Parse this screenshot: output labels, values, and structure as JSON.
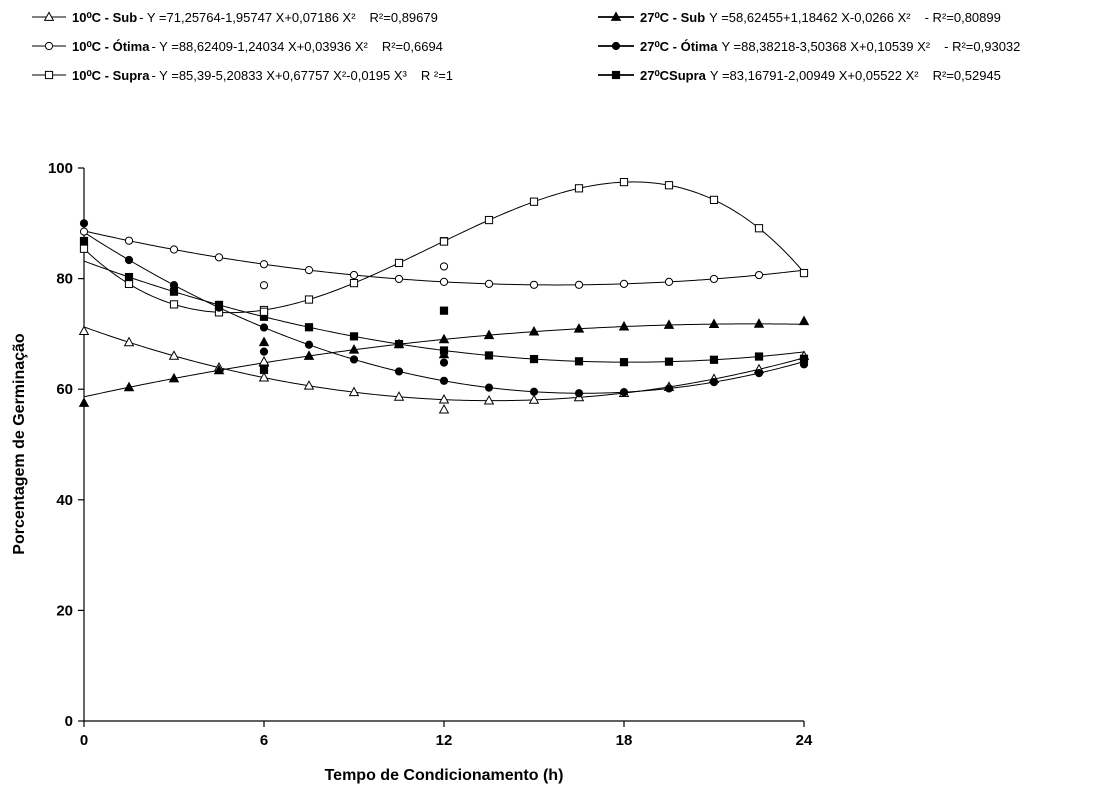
{
  "chart_data": {
    "type": "scatter",
    "xlabel": "Tempo de Condicionamento (h)",
    "ylabel": "Porcentagem de Germinação",
    "xlim": [
      0,
      24
    ],
    "ylim": [
      0,
      100
    ],
    "xticks": [
      0,
      6,
      12,
      18,
      24
    ],
    "yticks": [
      0,
      20,
      40,
      60,
      80,
      100
    ],
    "grid": false,
    "legend_position": "top",
    "series": [
      {
        "key": "s10sub",
        "name_bold": "10⁰C - Sub",
        "equation": "Y =71,25764-1,95747 X+0,07186 X²",
        "r2": "R²=0,89679",
        "marker": "triangle-open",
        "coef": [
          71.25764,
          -1.95747,
          0.07186,
          0
        ],
        "points": [
          [
            0,
            70.5
          ],
          [
            6,
            65
          ],
          [
            12,
            56.3
          ],
          [
            24,
            66
          ]
        ]
      },
      {
        "key": "s10otima",
        "name_bold": "10⁰C - Ótima",
        "equation": "Y =88,62409-1,24034 X+0,03936 X²",
        "r2": "R²=0,6694",
        "marker": "circle-open",
        "coef": [
          88.62409,
          -1.24034,
          0.03936,
          0
        ],
        "points": [
          [
            0,
            88.5
          ],
          [
            6,
            78.8
          ],
          [
            12,
            82.2
          ],
          [
            24,
            81
          ]
        ]
      },
      {
        "key": "s10supra",
        "name_bold": "10⁰C - Supra",
        "equation": "Y =85,39-5,20833 X+0,67757 X²-0,0195 X³",
        "r2": "R ²=1",
        "marker": "square-open",
        "coef": [
          85.39,
          -5.20833,
          0.67757,
          -0.0195
        ],
        "points": [
          [
            0,
            85.4
          ],
          [
            6,
            74
          ],
          [
            12,
            86.7
          ],
          [
            24,
            81
          ]
        ]
      },
      {
        "key": "s27sub",
        "name_bold": "27⁰C - Sub",
        "equation": "Y =58,62455+1,18462 X-0,0266 X²",
        "r2": "- R²=0,80899",
        "marker": "triangle-filled",
        "coef": [
          58.62455,
          1.18462,
          -0.0266,
          0
        ],
        "points": [
          [
            0,
            57.5
          ],
          [
            6,
            68.5
          ],
          [
            12,
            66.3
          ],
          [
            24,
            72.3
          ]
        ]
      },
      {
        "key": "s27otima",
        "name_bold": "27⁰C - Ótima",
        "equation": "Y =88,38218-3,50368 X+0,10539 X²",
        "r2": "- R²=0,93032",
        "marker": "circle-filled",
        "coef": [
          88.38218,
          -3.50368,
          0.10539,
          0
        ],
        "points": [
          [
            0,
            90
          ],
          [
            6,
            66.8
          ],
          [
            12,
            64.8
          ],
          [
            24,
            64.5
          ]
        ]
      },
      {
        "key": "s27supra",
        "name_bold": "27⁰CSupra",
        "equation": "Y =83,16791-2,00949 X+0,05522 X²",
        "r2": "R²=0,52945",
        "marker": "square-filled",
        "coef": [
          83.16791,
          -2.00949,
          0.05522,
          0
        ],
        "points": [
          [
            0,
            86.8
          ],
          [
            6,
            63.5
          ],
          [
            12,
            74.2
          ],
          [
            24,
            65.5
          ]
        ]
      }
    ]
  }
}
